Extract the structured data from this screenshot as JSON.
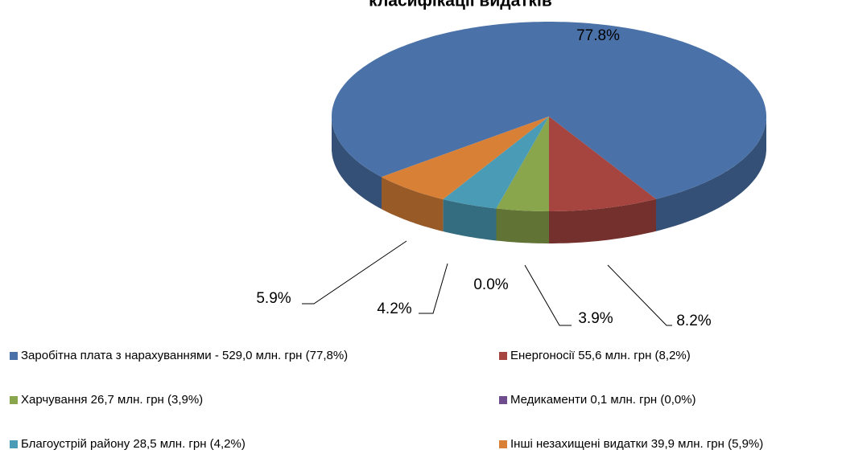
{
  "chart_data": {
    "type": "pie3d",
    "title": "класифікації видатків",
    "categories": [
      "Заробітна плата з нарахуваннями - 529,0 млн. грн (77,8%)",
      "Енергоносії  55,6 млн. грн (8,2%)",
      "Харчування 26,7 млн. грн (3,9%)",
      "Медикаменти 0,1 млн. грн (0,0%)",
      "Благоустрій району  28,5 млн. грн (4,2%)",
      "Інші незахищені видатки 39,9 млн. грн (5,9%)"
    ],
    "values": [
      77.8,
      8.2,
      3.9,
      0.0,
      4.2,
      5.9
    ],
    "value_labels": [
      "77.8%",
      "8.2%",
      "3.9%",
      "0.0%",
      "4.2%",
      "5.9%"
    ],
    "colors": [
      "#4a72a8",
      "#a64440",
      "#8aa64c",
      "#6e4c8e",
      "#4a9bb5",
      "#d98037"
    ],
    "legend": "bottom"
  }
}
